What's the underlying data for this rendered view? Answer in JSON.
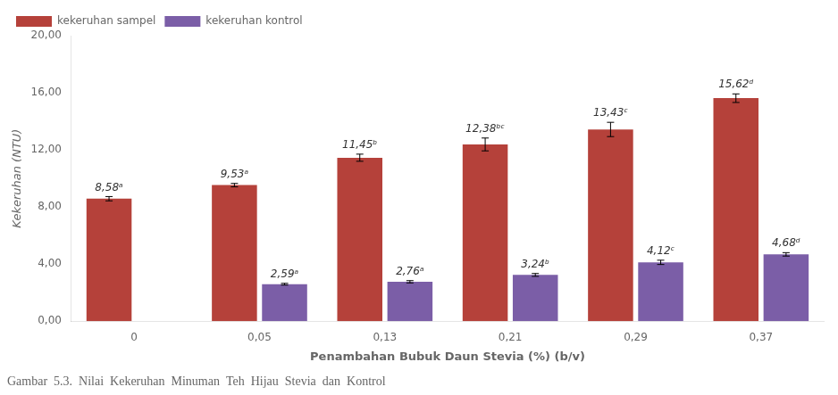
{
  "chart_data": {
    "type": "bar",
    "title": "Gambar  5.3.  Nilai  Kekeruhan  Minuman  Teh  Hijau  Stevia  dan  Kontrol",
    "x_label": "Penambahan Bubuk Daun Stevia (%) (b/v)",
    "y_label": "Kekeruhan (NTU)",
    "categories": [
      "0",
      "0,05",
      "0,13",
      "0,21",
      "0,29",
      "0,37"
    ],
    "series": [
      {
        "name": "kekeruhan sampel",
        "color": "#b5413a",
        "values": [
          8.58,
          9.53,
          11.45,
          12.38,
          13.43,
          15.62
        ],
        "errors": [
          0.15,
          0.12,
          0.25,
          0.45,
          0.5,
          0.3
        ],
        "value_labels": [
          "8,58ᵃ",
          "9,53ᵃ",
          "11,45ᵇ",
          "12,38ᵇᶜ",
          "13,43ᶜ",
          "15,62ᵈ"
        ]
      },
      {
        "name": "kekeruhan kontrol",
        "color": "#7b5ea7",
        "values": [
          null,
          2.59,
          2.76,
          3.24,
          4.12,
          4.68
        ],
        "errors": [
          null,
          0.06,
          0.08,
          0.1,
          0.15,
          0.12
        ],
        "value_labels": [
          null,
          "2,59ᵃ",
          "2,76ᵃ",
          "3,24ᵇ",
          "4,12ᶜ",
          "4,68ᵈ"
        ]
      }
    ],
    "ylim": [
      0,
      20
    ],
    "yticks": [
      {
        "value": 0,
        "label": "0,00"
      },
      {
        "value": 4,
        "label": "4,00"
      },
      {
        "value": 8,
        "label": "8,00"
      },
      {
        "value": 12,
        "label": "12,00"
      },
      {
        "value": 16,
        "label": "16,00"
      },
      {
        "value": 20,
        "label": "20,00"
      }
    ],
    "grid": false,
    "legend": "upper left",
    "data_labels": true
  }
}
